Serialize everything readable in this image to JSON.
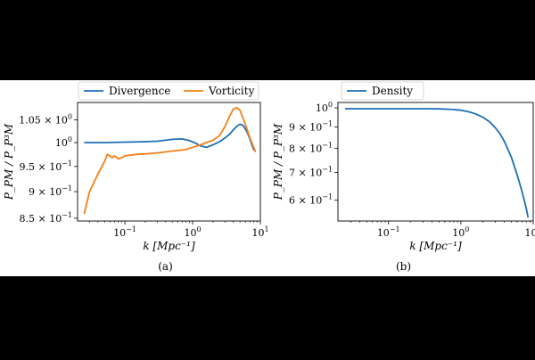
{
  "chart_data": [
    {
      "type": "line",
      "panel_label": "(a)",
      "xlabel": "k [Mpc⁻¹]",
      "ylabel": "P_PM / P_P³M",
      "xscale": "log",
      "yscale": "log",
      "xlim": [
        0.02,
        10
      ],
      "ylim": [
        0.845,
        1.09
      ],
      "xticks": [
        {
          "value": 0.1,
          "base": "10",
          "exp": "−1"
        },
        {
          "value": 1,
          "base": "10",
          "exp": "0"
        },
        {
          "value": 10,
          "base": "10",
          "exp": "1"
        }
      ],
      "yticks": [
        {
          "value": 0.85,
          "mant": "8.5 × 10",
          "exp": "−1"
        },
        {
          "value": 0.9,
          "mant": "9 × 10",
          "exp": "−1"
        },
        {
          "value": 0.95,
          "mant": "9.5 × 10",
          "exp": "−1"
        },
        {
          "value": 1.0,
          "mant": "10",
          "exp": "0"
        },
        {
          "value": 1.05,
          "mant": "1.05 × 10",
          "exp": "0"
        }
      ],
      "legend_position": "top",
      "series": [
        {
          "name": "Divergence",
          "color": "#1f6fb4",
          "x": [
            0.025,
            0.05,
            0.1,
            0.2,
            0.3,
            0.5,
            0.7,
            0.9,
            1.1,
            1.3,
            1.6,
            2.0,
            2.5,
            3.0,
            3.5,
            4.0,
            4.5,
            5.0,
            5.5,
            6.0,
            6.5,
            7.0,
            7.5,
            8.0,
            8.5
          ],
          "y": [
            1.0,
            1.0,
            1.001,
            1.002,
            1.003,
            1.007,
            1.008,
            1.004,
            0.999,
            0.993,
            0.99,
            0.995,
            1.002,
            1.01,
            1.018,
            1.028,
            1.036,
            1.04,
            1.038,
            1.03,
            1.02,
            1.008,
            0.995,
            0.985,
            0.982
          ]
        },
        {
          "name": "Vorticity",
          "color": "#f57f17",
          "x": [
            0.025,
            0.03,
            0.04,
            0.05,
            0.055,
            0.06,
            0.065,
            0.07,
            0.08,
            0.09,
            0.1,
            0.15,
            0.2,
            0.3,
            0.5,
            0.8,
            1.0,
            1.3,
            1.6,
            2.0,
            2.5,
            3.0,
            3.5,
            4.0,
            4.5,
            5.0,
            5.5,
            6.0,
            6.5,
            7.0,
            8.0,
            8.5
          ],
          "y": [
            0.858,
            0.9,
            0.935,
            0.96,
            0.975,
            0.972,
            0.968,
            0.972,
            0.966,
            0.968,
            0.972,
            0.975,
            0.976,
            0.978,
            0.982,
            0.985,
            0.99,
            0.995,
            1.0,
            1.005,
            1.015,
            1.035,
            1.058,
            1.075,
            1.078,
            1.072,
            1.055,
            1.04,
            1.025,
            1.01,
            0.99,
            0.98
          ]
        }
      ]
    },
    {
      "type": "line",
      "panel_label": "(b)",
      "xlabel": "k [Mpc⁻¹]",
      "ylabel": "P_PM / P_P³M",
      "xscale": "log",
      "yscale": "log",
      "xlim": [
        0.02,
        10
      ],
      "ylim": [
        0.535,
        1.03
      ],
      "xticks": [
        {
          "value": 0.1,
          "base": "10",
          "exp": "−1"
        },
        {
          "value": 1,
          "base": "10",
          "exp": "0"
        },
        {
          "value": 10,
          "base": "10",
          "exp": "1"
        }
      ],
      "yticks": [
        {
          "value": 0.6,
          "mant": "6 × 10",
          "exp": "−1"
        },
        {
          "value": 0.7,
          "mant": "7 × 10",
          "exp": "−1"
        },
        {
          "value": 0.8,
          "mant": "8 × 10",
          "exp": "−1"
        },
        {
          "value": 0.9,
          "mant": "9 × 10",
          "exp": "−1"
        },
        {
          "value": 1.0,
          "mant": "10",
          "exp": "0"
        }
      ],
      "legend_position": "top-left",
      "series": [
        {
          "name": "Density",
          "color": "#1f6fb4",
          "x": [
            0.025,
            0.05,
            0.1,
            0.2,
            0.3,
            0.5,
            0.7,
            1.0,
            1.3,
            1.6,
            2.0,
            2.5,
            3.0,
            3.5,
            4.0,
            5.0,
            6.0,
            7.0,
            8.0,
            8.5
          ],
          "y": [
            0.995,
            0.995,
            0.995,
            0.995,
            0.995,
            0.994,
            0.992,
            0.987,
            0.978,
            0.967,
            0.95,
            0.925,
            0.895,
            0.865,
            0.83,
            0.76,
            0.69,
            0.63,
            0.575,
            0.545
          ]
        }
      ]
    }
  ]
}
